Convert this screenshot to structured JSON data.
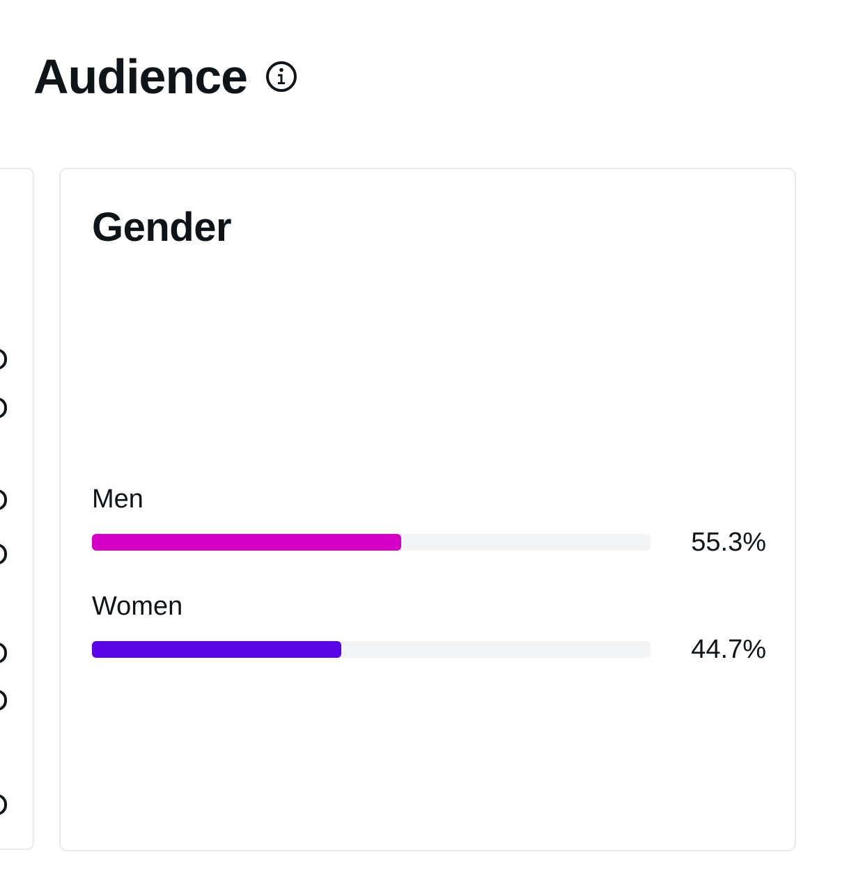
{
  "section": {
    "title": "Audience",
    "info_icon": "info-circle-icon"
  },
  "gender_card": {
    "title": "Gender",
    "items": [
      {
        "label": "Men",
        "value_text": "55.3%",
        "percent": 55.3,
        "color": "#d400c5"
      },
      {
        "label": "Women",
        "value_text": "44.7%",
        "percent": 44.7,
        "color": "#5a05e5"
      }
    ]
  }
}
